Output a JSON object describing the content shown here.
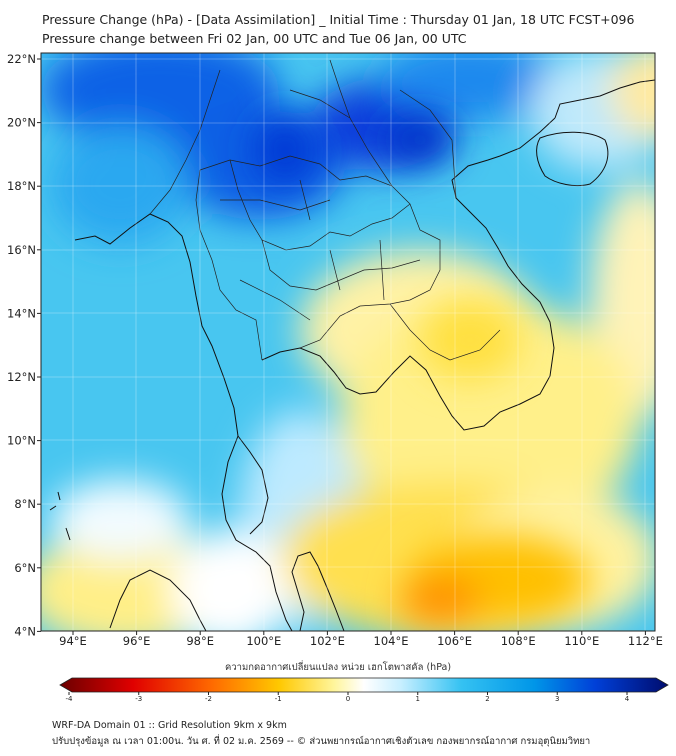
{
  "header": {
    "title_line1": "Pressure Change (hPa) - [Data Assimilation] _ Initial Time : Thursday 01 Jan, 18 UTC FCST+096",
    "title_line2": "Pressure change between Fri 02 Jan, 00 UTC and Tue 06 Jan, 00 UTC"
  },
  "map": {
    "lon_ticks": [
      "94°E",
      "96°E",
      "98°E",
      "100°E",
      "102°E",
      "104°E",
      "106°E",
      "108°E",
      "110°E",
      "112°E"
    ],
    "lat_ticks": [
      "22°N",
      "20°N",
      "18°N",
      "16°N",
      "14°N",
      "12°N",
      "10°N",
      "8°N",
      "6°N",
      "4°N"
    ]
  },
  "colorbar": {
    "title": "ความกดอากาศเปลี่ยนแปลง หน่วย เฮกโตพาสคัล (hPa)",
    "tick_labels": [
      "-4",
      "-3",
      "-2",
      "-1",
      "0",
      "1",
      "2",
      "3",
      "4"
    ],
    "colors": [
      "#6b0000",
      "#c80000",
      "#ff2a00",
      "#ff7a00",
      "#ffb400",
      "#ffe000",
      "#fff59a",
      "#ffffff",
      "#d8f4ff",
      "#7fd6f8",
      "#20b8f0",
      "#0090e6",
      "#0050dc",
      "#0018b4",
      "#000c6e"
    ]
  },
  "footer": {
    "line1": "WRF-DA Domain 01 :: Grid Resolution 9km x 9km",
    "line2": "ปรับปรุงข้อมูล ณ เวลา 01:00น. วัน ศ. ที่ 02 ม.ค. 2569 -- © ส่วนพยากรณ์อากาศเชิงตัวเลข กองพยากรณ์อากาศ กรมอุตุนิยมวิทยา"
  }
}
